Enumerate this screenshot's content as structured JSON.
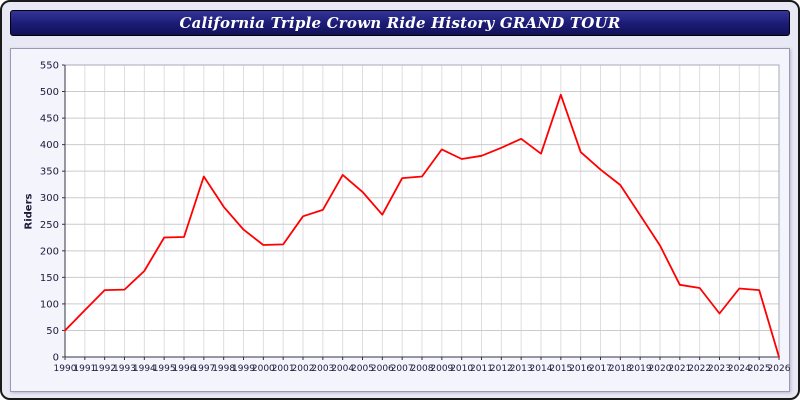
{
  "title": "California Triple Crown Ride History GRAND TOUR",
  "colors": {
    "header_bg": "#1b1b74",
    "page_bg": "#e9e9f6",
    "plot_bg": "#ffffff",
    "grid": "#cccccc",
    "line": "#ff0000",
    "axis_text": "#1b1b3a"
  },
  "chart_data": {
    "type": "line",
    "title": "California Triple Crown Ride History GRAND TOUR",
    "xlabel": "",
    "ylabel": "Riders",
    "ylim": [
      0,
      550
    ],
    "ytick_step": 50,
    "grid": true,
    "legend": "none",
    "line_color": "#ff0000",
    "x": [
      1990,
      1991,
      1992,
      1993,
      1994,
      1995,
      1996,
      1997,
      1998,
      1999,
      2000,
      2001,
      2002,
      2003,
      2004,
      2005,
      2006,
      2007,
      2008,
      2009,
      2010,
      2011,
      2012,
      2013,
      2014,
      2015,
      2016,
      2017,
      2018,
      2019,
      2020,
      2021,
      2022,
      2023,
      2024,
      2025,
      2026
    ],
    "values": [
      50,
      88,
      126,
      127,
      162,
      225,
      226,
      340,
      283,
      240,
      211,
      212,
      265,
      277,
      343,
      311,
      268,
      337,
      340,
      391,
      373,
      379,
      394,
      411,
      383,
      494,
      386,
      353,
      324,
      267,
      210,
      136,
      130,
      82,
      129,
      126,
      0
    ]
  }
}
